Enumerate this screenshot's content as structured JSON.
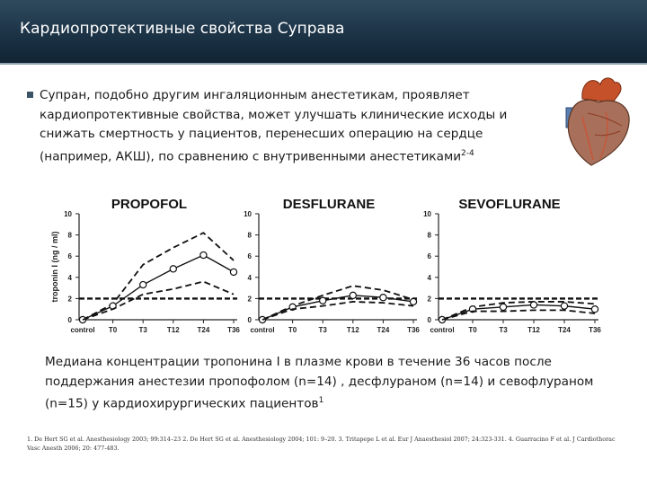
{
  "slide": {
    "title": "Кардиопротективные свойства Суправа",
    "bullet": "Супран, подобно другим ингаляционным анестетикам, проявляет кардиопротективные свойства, может улучшать клинические исходы и снижать смертность у пациентов, перенесших операцию на сердце  (например, АКШ), по сравнению с внутривенными анестетиками",
    "bullet_sup": "2-4",
    "caption": "Медиана концентрации тропонина I в плазме крови в течение 36 часов после поддержания анестезии пропофолом (n=14) , десфлураном (n=14) и севофлураном (n=15) у кардиохирургических пациентов",
    "caption_sup": "1",
    "references": "1. De Hert SG et al. Anesthesiology 2003; 99:314–23  2. De Hert SG et al. Anesthesiology 2004; 101: 9–20. 3. Tritapepe L et al. Eur J Anaesthesiol 2007; 24:323-331. 4. Guarracino F et al. J Cardiothorac Vasc Anesth 2006; 20: 477-483."
  },
  "chart_data": [
    {
      "type": "line",
      "title": "PROPOFOL",
      "ylabel": "troponin I (ng / ml)",
      "categories": [
        "control",
        "T0",
        "T3",
        "T12",
        "T24",
        "T36"
      ],
      "ylim": [
        0,
        10
      ],
      "yticks": [
        0,
        2,
        4,
        6,
        8,
        10
      ],
      "reference_line": 2,
      "series": [
        {
          "values": [
            0,
            1.5,
            5.2,
            6.8,
            8.2,
            5.6
          ],
          "style": "dashed"
        },
        {
          "values": [
            0,
            1.3,
            3.3,
            4.8,
            6.1,
            4.5
          ],
          "style": "solid-markers"
        },
        {
          "values": [
            0,
            1.0,
            2.4,
            2.9,
            3.6,
            2.4
          ],
          "style": "dashed"
        }
      ]
    },
    {
      "type": "line",
      "title": "DESFLURANE",
      "categories": [
        "control",
        "T0",
        "T3",
        "T12",
        "T24",
        "T36"
      ],
      "ylim": [
        0,
        10
      ],
      "yticks": [
        0,
        2,
        4,
        6,
        8,
        10
      ],
      "reference_line": 2,
      "series": [
        {
          "values": [
            0,
            1.3,
            2.3,
            3.2,
            2.8,
            1.9
          ],
          "style": "dashed"
        },
        {
          "values": [
            0,
            1.2,
            1.8,
            2.3,
            2.1,
            1.7
          ],
          "style": "solid-markers"
        },
        {
          "values": [
            0,
            1.0,
            1.3,
            1.7,
            1.6,
            1.3
          ],
          "style": "dashed"
        }
      ]
    },
    {
      "type": "line",
      "title": "SEVOFLURANE",
      "categories": [
        "control",
        "T0",
        "T3",
        "T12",
        "T24",
        "T36"
      ],
      "ylim": [
        0,
        10
      ],
      "yticks": [
        0,
        2,
        4,
        6,
        8,
        10
      ],
      "reference_line": 2,
      "series": [
        {
          "values": [
            0,
            1.2,
            1.6,
            1.7,
            1.7,
            1.5
          ],
          "style": "dashed"
        },
        {
          "values": [
            0,
            1.0,
            1.2,
            1.4,
            1.3,
            1.0
          ],
          "style": "solid-markers"
        },
        {
          "values": [
            0,
            0.8,
            0.8,
            0.9,
            0.9,
            0.6
          ],
          "style": "dashed"
        }
      ]
    }
  ]
}
